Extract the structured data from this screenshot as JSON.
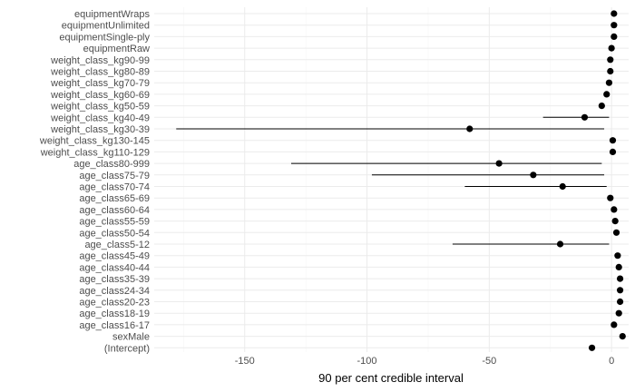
{
  "chart_data": {
    "type": "scatter",
    "xlabel": "90 per cent credible interval",
    "ylabel": "",
    "xlim": [
      -187,
      7
    ],
    "x_ticks": [
      -150,
      -100,
      -50,
      0
    ],
    "x_tick_labels": [
      "-150",
      "-100",
      "-50",
      "0"
    ],
    "x_minor_ticks": [
      -175,
      -125,
      -75,
      -25
    ],
    "grid": true,
    "points": [
      {
        "label": "equipmentWraps",
        "estimate": 1.0,
        "lower": 0.5,
        "upper": 1.5
      },
      {
        "label": "equipmentUnlimited",
        "estimate": 1.0,
        "lower": 0.5,
        "upper": 1.5
      },
      {
        "label": "equipmentSingle-ply",
        "estimate": 1.0,
        "lower": 0.5,
        "upper": 1.5
      },
      {
        "label": "equipmentRaw",
        "estimate": 0.0,
        "lower": -0.5,
        "upper": 0.5
      },
      {
        "label": "weight_class_kg90-99",
        "estimate": -0.5,
        "lower": -1.0,
        "upper": 0.0
      },
      {
        "label": "weight_class_kg80-89",
        "estimate": -0.5,
        "lower": -1.0,
        "upper": 0.0
      },
      {
        "label": "weight_class_kg70-79",
        "estimate": -1.0,
        "lower": -1.5,
        "upper": -0.5
      },
      {
        "label": "weight_class_kg60-69",
        "estimate": -2.0,
        "lower": -2.5,
        "upper": -1.5
      },
      {
        "label": "weight_class_kg50-59",
        "estimate": -4.0,
        "lower": -4.5,
        "upper": -3.5
      },
      {
        "label": "weight_class_kg40-49",
        "estimate": -11.0,
        "lower": -28.0,
        "upper": -1.0
      },
      {
        "label": "weight_class_kg30-39",
        "estimate": -58.0,
        "lower": -178.0,
        "upper": -3.0
      },
      {
        "label": "weight_class_kg130-145",
        "estimate": 0.5,
        "lower": 0.0,
        "upper": 1.0
      },
      {
        "label": "weight_class_kg110-129",
        "estimate": 0.5,
        "lower": 0.0,
        "upper": 1.0
      },
      {
        "label": "age_class80-999",
        "estimate": -46.0,
        "lower": -131.0,
        "upper": -4.0
      },
      {
        "label": "age_class75-79",
        "estimate": -32.0,
        "lower": -98.0,
        "upper": -3.0
      },
      {
        "label": "age_class70-74",
        "estimate": -20.0,
        "lower": -60.0,
        "upper": -2.0
      },
      {
        "label": "age_class65-69",
        "estimate": -0.5,
        "lower": -1.0,
        "upper": 0.0
      },
      {
        "label": "age_class60-64",
        "estimate": 1.0,
        "lower": 0.5,
        "upper": 1.5
      },
      {
        "label": "age_class55-59",
        "estimate": 1.5,
        "lower": 1.0,
        "upper": 2.0
      },
      {
        "label": "age_class50-54",
        "estimate": 2.0,
        "lower": 1.5,
        "upper": 2.5
      },
      {
        "label": "age_class5-12",
        "estimate": -21.0,
        "lower": -65.0,
        "upper": -1.0
      },
      {
        "label": "age_class45-49",
        "estimate": 2.5,
        "lower": 2.0,
        "upper": 3.0
      },
      {
        "label": "age_class40-44",
        "estimate": 3.0,
        "lower": 2.5,
        "upper": 3.5
      },
      {
        "label": "age_class35-39",
        "estimate": 3.5,
        "lower": 3.0,
        "upper": 4.0
      },
      {
        "label": "age_class24-34",
        "estimate": 3.5,
        "lower": 3.0,
        "upper": 4.0
      },
      {
        "label": "age_class20-23",
        "estimate": 3.5,
        "lower": 3.0,
        "upper": 4.0
      },
      {
        "label": "age_class18-19",
        "estimate": 3.0,
        "lower": 2.5,
        "upper": 3.5
      },
      {
        "label": "age_class16-17",
        "estimate": 1.0,
        "lower": 0.5,
        "upper": 1.5
      },
      {
        "label": "sexMale",
        "estimate": 4.5,
        "lower": 4.0,
        "upper": 5.0
      },
      {
        "label": "(Intercept)",
        "estimate": -8.0,
        "lower": -8.5,
        "upper": -7.5
      }
    ]
  }
}
